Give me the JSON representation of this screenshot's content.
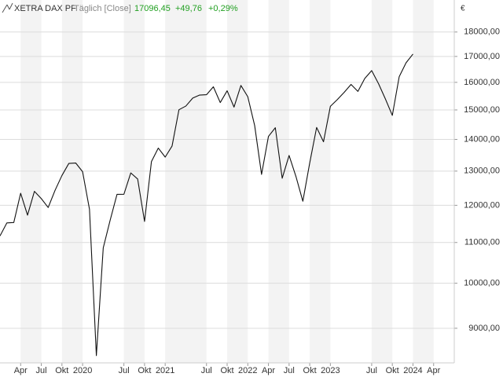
{
  "chart_data": {
    "type": "line",
    "title": "XETRA DAX PF",
    "subtitle": "Täglich [Close]",
    "last": "17096,45",
    "change": "+49,76",
    "change_pct": "+0,29%",
    "y_unit": "€",
    "color": "#111111",
    "log_scale": true,
    "grid": true,
    "x": [
      "2019-01",
      "2019-02",
      "2019-03",
      "2019-04",
      "2019-05",
      "2019-06",
      "2019-07",
      "2019-08",
      "2019-09",
      "2019-10",
      "2019-11",
      "2019-12",
      "2020-01",
      "2020-02",
      "2020-03",
      "2020-04",
      "2020-05",
      "2020-06",
      "2020-07",
      "2020-08",
      "2020-09",
      "2020-10",
      "2020-11",
      "2020-12",
      "2021-01",
      "2021-02",
      "2021-03",
      "2021-04",
      "2021-05",
      "2021-06",
      "2021-07",
      "2021-08",
      "2021-09",
      "2021-10",
      "2021-11",
      "2021-12",
      "2022-01",
      "2022-02",
      "2022-03",
      "2022-04",
      "2022-05",
      "2022-06",
      "2022-07",
      "2022-08",
      "2022-09",
      "2022-10",
      "2022-11",
      "2022-12",
      "2023-01",
      "2023-02",
      "2023-03",
      "2023-04",
      "2023-05",
      "2023-06",
      "2023-07",
      "2023-08",
      "2023-09",
      "2023-10",
      "2023-11",
      "2023-12",
      "2024-01"
    ],
    "values": [
      11170,
      11516,
      11526,
      12344,
      11727,
      12399,
      12189,
      11939,
      12428,
      12867,
      13236,
      13249,
      12981,
      11890,
      8442,
      10862,
      11587,
      12311,
      12313,
      12945,
      12761,
      11556,
      13291,
      13719,
      13433,
      13786,
      15008,
      15136,
      15421,
      15531,
      15544,
      15835,
      15261,
      15688,
      15100,
      15885,
      15471,
      14461,
      12900,
      14098,
      14388,
      12784,
      13484,
      12835,
      12114,
      13253,
      14397,
      13924,
      15128,
      15365,
      15629,
      15922,
      15664,
      16148,
      16447,
      15947,
      15387,
      14810,
      16215,
      16752,
      17096.45
    ],
    "xlim": [
      "2019-01",
      "2024-07"
    ],
    "xticks": [
      {
        "value": "2019-04",
        "label": "Apr"
      },
      {
        "value": "2019-07",
        "label": "Jul"
      },
      {
        "value": "2019-10",
        "label": "Okt"
      },
      {
        "value": "2020-01",
        "label": "2020"
      },
      {
        "value": "2020-07",
        "label": "Jul"
      },
      {
        "value": "2020-10",
        "label": "Okt"
      },
      {
        "value": "2021-01",
        "label": "2021"
      },
      {
        "value": "2021-07",
        "label": "Jul"
      },
      {
        "value": "2021-10",
        "label": "Okt"
      },
      {
        "value": "2022-01",
        "label": "2022"
      },
      {
        "value": "2022-04",
        "label": "Apr"
      },
      {
        "value": "2022-07",
        "label": "Jul"
      },
      {
        "value": "2022-10",
        "label": "Okt"
      },
      {
        "value": "2023-01",
        "label": "2023"
      },
      {
        "value": "2023-07",
        "label": "Jul"
      },
      {
        "value": "2023-10",
        "label": "Okt"
      },
      {
        "value": "2024-01",
        "label": "2024"
      },
      {
        "value": "2024-04",
        "label": "Apr"
      }
    ],
    "ylim": [
      8300,
      19400
    ],
    "yticks": [
      {
        "value": 9000,
        "label": "9000,00"
      },
      {
        "value": 10000,
        "label": "10000,00"
      },
      {
        "value": 11000,
        "label": "11000,00"
      },
      {
        "value": 12000,
        "label": "12000,00"
      },
      {
        "value": 13000,
        "label": "13000,00"
      },
      {
        "value": 14000,
        "label": "14000,00"
      },
      {
        "value": 15000,
        "label": "15000,00"
      },
      {
        "value": 16000,
        "label": "16000,00"
      },
      {
        "value": 17000,
        "label": "17000,00"
      },
      {
        "value": 18000,
        "label": "18000,00"
      }
    ]
  }
}
